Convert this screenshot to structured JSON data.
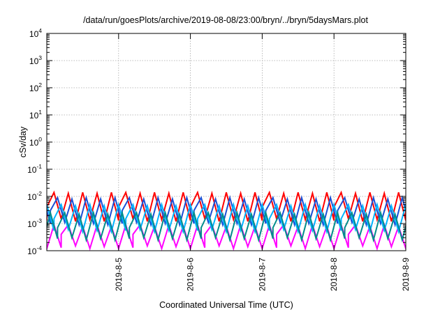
{
  "chart_data": {
    "type": "line",
    "title": "/data/run/goesPlots/archive/2019-08-08/23:00/bryn/../bryn/5daysMars.plot",
    "xlabel": "Coordinated Universal Time (UTC)",
    "ylabel": "cSv/day",
    "yscale": "log",
    "ylim": [
      0.0001,
      10000
    ],
    "xlim": [
      "2019-08-04 00:00",
      "2019-08-09 00:00"
    ],
    "x_ticks": [
      "2019-8-5",
      "2019-8-6",
      "2019-8-7",
      "2019-8-8",
      "2019-8-9"
    ],
    "y_ticks": [
      {
        "base": "10",
        "exp": "-4"
      },
      {
        "base": "10",
        "exp": "-3"
      },
      {
        "base": "10",
        "exp": "-2"
      },
      {
        "base": "10",
        "exp": "-1"
      },
      {
        "base": "10",
        "exp": "0"
      },
      {
        "base": "10",
        "exp": "1"
      },
      {
        "base": "10",
        "exp": "2"
      },
      {
        "base": "10",
        "exp": "3"
      },
      {
        "base": "10",
        "exp": "4"
      }
    ],
    "grid": true,
    "legend": "none",
    "series": [
      {
        "color": "#ff00ff",
        "phase_days": 0.2,
        "x": [
          "2019-08-04 00:00",
          "2019-08-04 02:24",
          "2019-08-04 04:48",
          "2019-08-04 07:12",
          "2019-08-04 09:36",
          "2019-08-04 12:00",
          "2019-08-04 14:24",
          "2019-08-04 16:48",
          "2019-08-04 19:12",
          "2019-08-04 21:36",
          "2019-08-05 00:00"
        ],
        "y": [
          0.0004,
          0.0009,
          0.00015,
          0.0008,
          0.00012,
          0.0009,
          0.00014,
          0.0008,
          0.00012,
          0.0009,
          0.00013
        ]
      },
      {
        "color": "#ff0000",
        "phase_days": 0.0,
        "x": [
          "2019-08-04 00:00",
          "2019-08-04 02:24",
          "2019-08-04 04:48",
          "2019-08-04 07:12",
          "2019-08-04 09:36",
          "2019-08-04 12:00",
          "2019-08-04 14:24",
          "2019-08-04 16:48",
          "2019-08-04 19:12",
          "2019-08-04 21:36",
          "2019-08-05 00:00"
        ],
        "y": [
          0.004,
          0.014,
          0.0015,
          0.013,
          0.0012,
          0.014,
          0.0014,
          0.013,
          0.0012,
          0.014,
          0.0013
        ]
      },
      {
        "color": "#1a4fd6",
        "phase_days": 0.05,
        "x": [
          "2019-08-04 00:00",
          "2019-08-04 02:24",
          "2019-08-04 04:48",
          "2019-08-04 07:12",
          "2019-08-04 09:36",
          "2019-08-04 12:00",
          "2019-08-04 14:24",
          "2019-08-04 16:48",
          "2019-08-04 19:12",
          "2019-08-04 21:36",
          "2019-08-05 00:00"
        ],
        "y": [
          0.003,
          0.009,
          0.0011,
          0.008,
          0.0009,
          0.009,
          0.001,
          0.008,
          0.0009,
          0.009,
          0.001
        ]
      },
      {
        "color": "#00b4ff",
        "phase_days": 0.1,
        "x": [
          "2019-08-04 00:00",
          "2019-08-04 02:24",
          "2019-08-04 04:48",
          "2019-08-04 07:12",
          "2019-08-04 09:36",
          "2019-08-04 12:00",
          "2019-08-04 14:24",
          "2019-08-04 16:48",
          "2019-08-04 19:12",
          "2019-08-04 21:36",
          "2019-08-05 00:00"
        ],
        "y": [
          0.0015,
          0.005,
          0.0006,
          0.0045,
          0.0005,
          0.005,
          0.00055,
          0.0045,
          0.0005,
          0.005,
          0.00055
        ]
      },
      {
        "color": "#008c8c",
        "phase_days": 0.15,
        "x": [
          "2019-08-04 00:00",
          "2019-08-04 02:24",
          "2019-08-04 04:48",
          "2019-08-04 07:12",
          "2019-08-04 09:36",
          "2019-08-04 12:00",
          "2019-08-04 14:24",
          "2019-08-04 16:48",
          "2019-08-04 19:12",
          "2019-08-04 21:36",
          "2019-08-05 00:00"
        ],
        "y": [
          0.0007,
          0.0025,
          0.0003,
          0.0022,
          0.00025,
          0.0025,
          0.00028,
          0.0022,
          0.00025,
          0.0025,
          0.00028
        ]
      }
    ]
  }
}
